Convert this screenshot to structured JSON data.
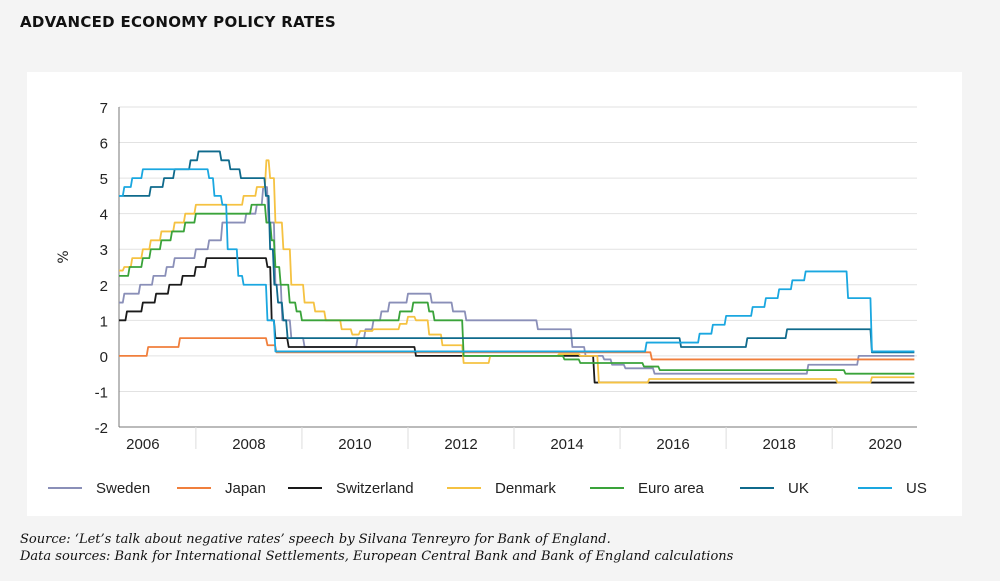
{
  "title": "ADVANCED ECONOMY POLICY RATES",
  "source_line1": "Source: ‘Let’s talk about negative rates’ speech by Silvana Tenreyro for Bank of England.",
  "source_line2": "Data sources: Bank for International Settlements, European Central Bank and Bank of England calculations",
  "chart_data": {
    "type": "line",
    "title": "ADVANCED ECONOMY POLICY RATES",
    "xlabel": "",
    "ylabel": "%",
    "xlim": [
      2006,
      2021.05
    ],
    "ylim": [
      -2,
      7
    ],
    "yticks": [
      7,
      6,
      5,
      4,
      3,
      2,
      1,
      0,
      -1,
      -2
    ],
    "xticks": [
      "2006",
      "2008",
      "2010",
      "2012",
      "2014",
      "2016",
      "2018",
      "2020"
    ],
    "legend_position": "bottom",
    "series": [
      {
        "name": "Sweden",
        "color": "#8a8fb8",
        "steps": [
          [
            2006,
            1.5
          ],
          [
            2006.1,
            1.75
          ],
          [
            2006.4,
            2
          ],
          [
            2006.65,
            2.25
          ],
          [
            2006.9,
            2.5
          ],
          [
            2007.05,
            2.75
          ],
          [
            2007.45,
            3
          ],
          [
            2007.7,
            3.25
          ],
          [
            2007.95,
            3.75
          ],
          [
            2008.4,
            4
          ],
          [
            2008.6,
            4.25
          ],
          [
            2008.72,
            4.75
          ],
          [
            2008.82,
            3.75
          ],
          [
            2008.95,
            2
          ],
          [
            2009.08,
            1
          ],
          [
            2009.25,
            0.5
          ],
          [
            2009.5,
            0.25
          ],
          [
            2010.5,
            0.5
          ],
          [
            2010.65,
            0.75
          ],
          [
            2010.8,
            1
          ],
          [
            2010.95,
            1.25
          ],
          [
            2011.1,
            1.5
          ],
          [
            2011.45,
            1.75
          ],
          [
            2011.9,
            1.5
          ],
          [
            2012.3,
            1.25
          ],
          [
            2012.55,
            1
          ],
          [
            2013.9,
            0.75
          ],
          [
            2014.55,
            0.25
          ],
          [
            2014.8,
            0
          ],
          [
            2015.15,
            -0.1
          ],
          [
            2015.3,
            -0.25
          ],
          [
            2015.55,
            -0.35
          ],
          [
            2016.1,
            -0.5
          ],
          [
            2019.0,
            -0.25
          ],
          [
            2019.95,
            0
          ]
        ]
      },
      {
        "name": "Japan",
        "color": "#f07f3c",
        "steps": [
          [
            2006,
            0
          ],
          [
            2006.55,
            0.25
          ],
          [
            2007.15,
            0.5
          ],
          [
            2008.8,
            0.3
          ],
          [
            2008.97,
            0.1
          ],
          [
            2016.05,
            -0.1
          ]
        ]
      },
      {
        "name": "Switzerland",
        "color": "#1a1a1a",
        "steps": [
          [
            2006,
            1
          ],
          [
            2006.15,
            1.25
          ],
          [
            2006.45,
            1.5
          ],
          [
            2006.7,
            1.75
          ],
          [
            2006.95,
            2
          ],
          [
            2007.2,
            2.25
          ],
          [
            2007.45,
            2.5
          ],
          [
            2007.65,
            2.75
          ],
          [
            2008.8,
            2.5
          ],
          [
            2008.88,
            1
          ],
          [
            2008.95,
            0.5
          ],
          [
            2009.2,
            0.25
          ],
          [
            2011.6,
            0
          ],
          [
            2014.97,
            -0.75
          ]
        ]
      },
      {
        "name": "Denmark",
        "color": "#f5c242",
        "steps": [
          [
            2006,
            2.4
          ],
          [
            2006.1,
            2.5
          ],
          [
            2006.25,
            2.75
          ],
          [
            2006.45,
            3
          ],
          [
            2006.6,
            3.25
          ],
          [
            2006.8,
            3.5
          ],
          [
            2007.05,
            3.75
          ],
          [
            2007.25,
            4
          ],
          [
            2007.45,
            4.25
          ],
          [
            2008.35,
            4.5
          ],
          [
            2008.6,
            4.75
          ],
          [
            2008.78,
            5.5
          ],
          [
            2008.85,
            5
          ],
          [
            2008.95,
            3.75
          ],
          [
            2009.1,
            3
          ],
          [
            2009.25,
            2
          ],
          [
            2009.5,
            1.5
          ],
          [
            2009.7,
            1.25
          ],
          [
            2009.9,
            1
          ],
          [
            2010.2,
            0.75
          ],
          [
            2010.4,
            0.6
          ],
          [
            2010.55,
            0.7
          ],
          [
            2010.8,
            0.75
          ],
          [
            2011.3,
            0.9
          ],
          [
            2011.45,
            1.1
          ],
          [
            2011.6,
            1
          ],
          [
            2011.85,
            0.6
          ],
          [
            2012.1,
            0.3
          ],
          [
            2012.5,
            -0.2
          ],
          [
            2013.0,
            0
          ],
          [
            2014.3,
            0.05
          ],
          [
            2014.7,
            0
          ],
          [
            2015.05,
            -0.75
          ],
          [
            2016.0,
            -0.65
          ],
          [
            2019.55,
            -0.75
          ],
          [
            2020.2,
            -0.6
          ]
        ]
      },
      {
        "name": "Euro area",
        "color": "#3aa33a",
        "steps": [
          [
            2006,
            2.25
          ],
          [
            2006.2,
            2.5
          ],
          [
            2006.45,
            2.75
          ],
          [
            2006.6,
            3
          ],
          [
            2006.8,
            3.25
          ],
          [
            2007.0,
            3.5
          ],
          [
            2007.25,
            3.75
          ],
          [
            2007.45,
            4
          ],
          [
            2008.5,
            4.25
          ],
          [
            2008.78,
            3.75
          ],
          [
            2008.88,
            3.25
          ],
          [
            2008.95,
            2.5
          ],
          [
            2009.05,
            2
          ],
          [
            2009.22,
            1.5
          ],
          [
            2009.35,
            1.25
          ],
          [
            2009.45,
            1
          ],
          [
            2011.3,
            1.25
          ],
          [
            2011.55,
            1.5
          ],
          [
            2011.85,
            1.25
          ],
          [
            2011.95,
            1
          ],
          [
            2012.5,
            0
          ],
          [
            2014.4,
            -0.1
          ],
          [
            2014.7,
            -0.2
          ],
          [
            2015.9,
            -0.3
          ],
          [
            2016.2,
            -0.4
          ],
          [
            2019.7,
            -0.5
          ]
        ]
      },
      {
        "name": "UK",
        "color": "#0f6a8c",
        "steps": [
          [
            2006,
            4.5
          ],
          [
            2006.6,
            4.75
          ],
          [
            2006.85,
            5
          ],
          [
            2007.05,
            5.25
          ],
          [
            2007.35,
            5.5
          ],
          [
            2007.5,
            5.75
          ],
          [
            2007.93,
            5.5
          ],
          [
            2008.1,
            5.25
          ],
          [
            2008.3,
            5
          ],
          [
            2008.77,
            4.5
          ],
          [
            2008.85,
            3
          ],
          [
            2008.93,
            2
          ],
          [
            2009.0,
            1.5
          ],
          [
            2009.1,
            1
          ],
          [
            2009.18,
            0.5
          ],
          [
            2016.6,
            0.25
          ],
          [
            2017.85,
            0.5
          ],
          [
            2018.6,
            0.75
          ],
          [
            2020.2,
            0.1
          ]
        ]
      },
      {
        "name": "US",
        "color": "#1aa7e0",
        "steps": [
          [
            2006,
            4.5
          ],
          [
            2006.1,
            4.75
          ],
          [
            2006.25,
            5
          ],
          [
            2006.45,
            5.25
          ],
          [
            2007.7,
            5
          ],
          [
            2007.8,
            4.5
          ],
          [
            2007.95,
            4.25
          ],
          [
            2008.05,
            3
          ],
          [
            2008.25,
            2.25
          ],
          [
            2008.35,
            2
          ],
          [
            2008.8,
            1
          ],
          [
            2008.95,
            0.125
          ],
          [
            2015.95,
            0.375
          ],
          [
            2016.95,
            0.625
          ],
          [
            2017.2,
            0.875
          ],
          [
            2017.45,
            1.125
          ],
          [
            2017.95,
            1.375
          ],
          [
            2018.2,
            1.625
          ],
          [
            2018.45,
            1.875
          ],
          [
            2018.7,
            2.125
          ],
          [
            2018.95,
            2.375
          ],
          [
            2019.5,
            2.375
          ],
          [
            2019.75,
            1.625
          ],
          [
            2020.15,
            1.625
          ],
          [
            2020.2,
            0.125
          ]
        ]
      }
    ]
  }
}
